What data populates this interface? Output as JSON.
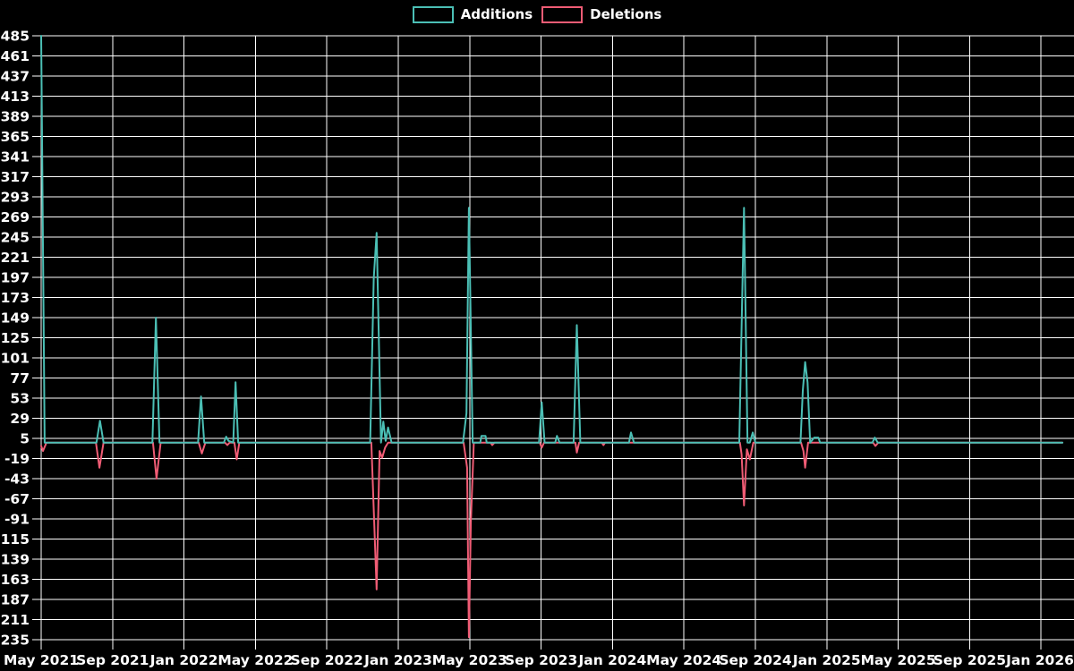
{
  "chart_data": {
    "type": "line",
    "title": "",
    "legend_position": "top-center",
    "grid": true,
    "background": "#000000",
    "gridline_color": "#ffffff",
    "text_color": "#ffffff",
    "x_axis": {
      "tick_labels": [
        "May 2021",
        "Sep 2021",
        "Jan 2022",
        "May 2022",
        "Sep 2022",
        "Jan 2023",
        "May 2023",
        "Sep 2023",
        "Jan 2024",
        "May 2024",
        "Sep 2024",
        "Jan 2025",
        "May 2025",
        "Sep 2025",
        "Jan 2026"
      ],
      "range": [
        "2021-05-01",
        "2026-02-07"
      ]
    },
    "y_axis": {
      "tick_labels": [
        485,
        461,
        437,
        413,
        389,
        365,
        341,
        317,
        293,
        269,
        245,
        221,
        197,
        173,
        149,
        125,
        101,
        77,
        53,
        29,
        5,
        -19,
        -43,
        -67,
        -91,
        -115,
        -139,
        -163,
        -187,
        -211,
        -235
      ],
      "range": [
        -235,
        485
      ]
    },
    "series": [
      {
        "name": "Additions",
        "color": "#4bbfb5",
        "points": [
          [
            "2021-05-01",
            485
          ],
          [
            "2021-05-07",
            0
          ],
          [
            "2021-08-04",
            0
          ],
          [
            "2021-08-10",
            26
          ],
          [
            "2021-08-16",
            0
          ],
          [
            "2021-11-08",
            0
          ],
          [
            "2021-11-14",
            149
          ],
          [
            "2021-11-20",
            0
          ],
          [
            "2022-01-25",
            0
          ],
          [
            "2022-01-30",
            55
          ],
          [
            "2022-02-05",
            0
          ],
          [
            "2022-03-08",
            0
          ],
          [
            "2022-03-12",
            7
          ],
          [
            "2022-03-16",
            2
          ],
          [
            "2022-03-24",
            0
          ],
          [
            "2022-03-28",
            72
          ],
          [
            "2022-04-02",
            0
          ],
          [
            "2022-11-14",
            0
          ],
          [
            "2022-11-20",
            196
          ],
          [
            "2022-11-25",
            250
          ],
          [
            "2022-12-02",
            0
          ],
          [
            "2022-12-06",
            25
          ],
          [
            "2022-12-10",
            2
          ],
          [
            "2022-12-14",
            18
          ],
          [
            "2022-12-20",
            0
          ],
          [
            "2023-04-20",
            0
          ],
          [
            "2023-04-26",
            35
          ],
          [
            "2023-04-30",
            280
          ],
          [
            "2023-05-06",
            0
          ],
          [
            "2023-05-19",
            0
          ],
          [
            "2023-05-21",
            8
          ],
          [
            "2023-05-28",
            8
          ],
          [
            "2023-05-30",
            0
          ],
          [
            "2023-08-28",
            0
          ],
          [
            "2023-09-02",
            48
          ],
          [
            "2023-09-07",
            0
          ],
          [
            "2023-09-25",
            0
          ],
          [
            "2023-09-28",
            8
          ],
          [
            "2023-10-02",
            0
          ],
          [
            "2023-10-26",
            0
          ],
          [
            "2023-11-01",
            140
          ],
          [
            "2023-11-07",
            0
          ],
          [
            "2024-01-29",
            0
          ],
          [
            "2024-02-02",
            12
          ],
          [
            "2024-02-07",
            0
          ],
          [
            "2024-08-04",
            0
          ],
          [
            "2024-08-12",
            280
          ],
          [
            "2024-08-18",
            0
          ],
          [
            "2024-08-22",
            0
          ],
          [
            "2024-08-27",
            12
          ],
          [
            "2024-09-01",
            0
          ],
          [
            "2024-11-17",
            0
          ],
          [
            "2024-11-21",
            62
          ],
          [
            "2024-11-25",
            96
          ],
          [
            "2024-11-29",
            72
          ],
          [
            "2024-12-03",
            0
          ],
          [
            "2024-12-10",
            6
          ],
          [
            "2024-12-17",
            6
          ],
          [
            "2024-12-20",
            0
          ],
          [
            "2025-03-18",
            0
          ],
          [
            "2025-03-22",
            6
          ],
          [
            "2025-03-27",
            0
          ],
          [
            "2026-02-07",
            0
          ]
        ]
      },
      {
        "name": "Deletions",
        "color": "#f05c75",
        "points": [
          [
            "2021-05-01",
            -4
          ],
          [
            "2021-05-04",
            -10
          ],
          [
            "2021-05-10",
            0
          ],
          [
            "2021-08-03",
            0
          ],
          [
            "2021-08-09",
            -30
          ],
          [
            "2021-08-16",
            0
          ],
          [
            "2021-11-09",
            0
          ],
          [
            "2021-11-15",
            -43
          ],
          [
            "2021-11-22",
            0
          ],
          [
            "2022-01-26",
            0
          ],
          [
            "2022-02-01",
            -13
          ],
          [
            "2022-02-07",
            0
          ],
          [
            "2022-03-10",
            0
          ],
          [
            "2022-03-14",
            -3
          ],
          [
            "2022-03-18",
            0
          ],
          [
            "2022-03-26",
            0
          ],
          [
            "2022-03-30",
            -20
          ],
          [
            "2022-04-04",
            0
          ],
          [
            "2022-11-16",
            0
          ],
          [
            "2022-11-25",
            -175
          ],
          [
            "2022-11-30",
            -10
          ],
          [
            "2022-12-04",
            -18
          ],
          [
            "2022-12-09",
            -6
          ],
          [
            "2022-12-14",
            0
          ],
          [
            "2023-04-21",
            0
          ],
          [
            "2023-04-27",
            -30
          ],
          [
            "2023-04-30",
            -232
          ],
          [
            "2023-05-03",
            -95
          ],
          [
            "2023-05-08",
            0
          ],
          [
            "2023-06-06",
            0
          ],
          [
            "2023-06-09",
            -3
          ],
          [
            "2023-06-13",
            0
          ],
          [
            "2023-08-29",
            0
          ],
          [
            "2023-09-02",
            -6
          ],
          [
            "2023-09-06",
            0
          ],
          [
            "2023-10-29",
            0
          ],
          [
            "2023-11-01",
            -12
          ],
          [
            "2023-11-05",
            0
          ],
          [
            "2023-12-13",
            0
          ],
          [
            "2023-12-16",
            -3
          ],
          [
            "2023-12-19",
            0
          ],
          [
            "2024-08-05",
            0
          ],
          [
            "2024-08-08",
            -14
          ],
          [
            "2024-08-12",
            -75
          ],
          [
            "2024-08-17",
            -8
          ],
          [
            "2024-08-22",
            -20
          ],
          [
            "2024-08-28",
            0
          ],
          [
            "2024-11-18",
            0
          ],
          [
            "2024-11-22",
            -10
          ],
          [
            "2024-11-25",
            -30
          ],
          [
            "2024-11-30",
            0
          ],
          [
            "2025-03-19",
            0
          ],
          [
            "2025-03-23",
            -4
          ],
          [
            "2025-03-28",
            0
          ],
          [
            "2026-02-07",
            0
          ]
        ]
      }
    ]
  }
}
